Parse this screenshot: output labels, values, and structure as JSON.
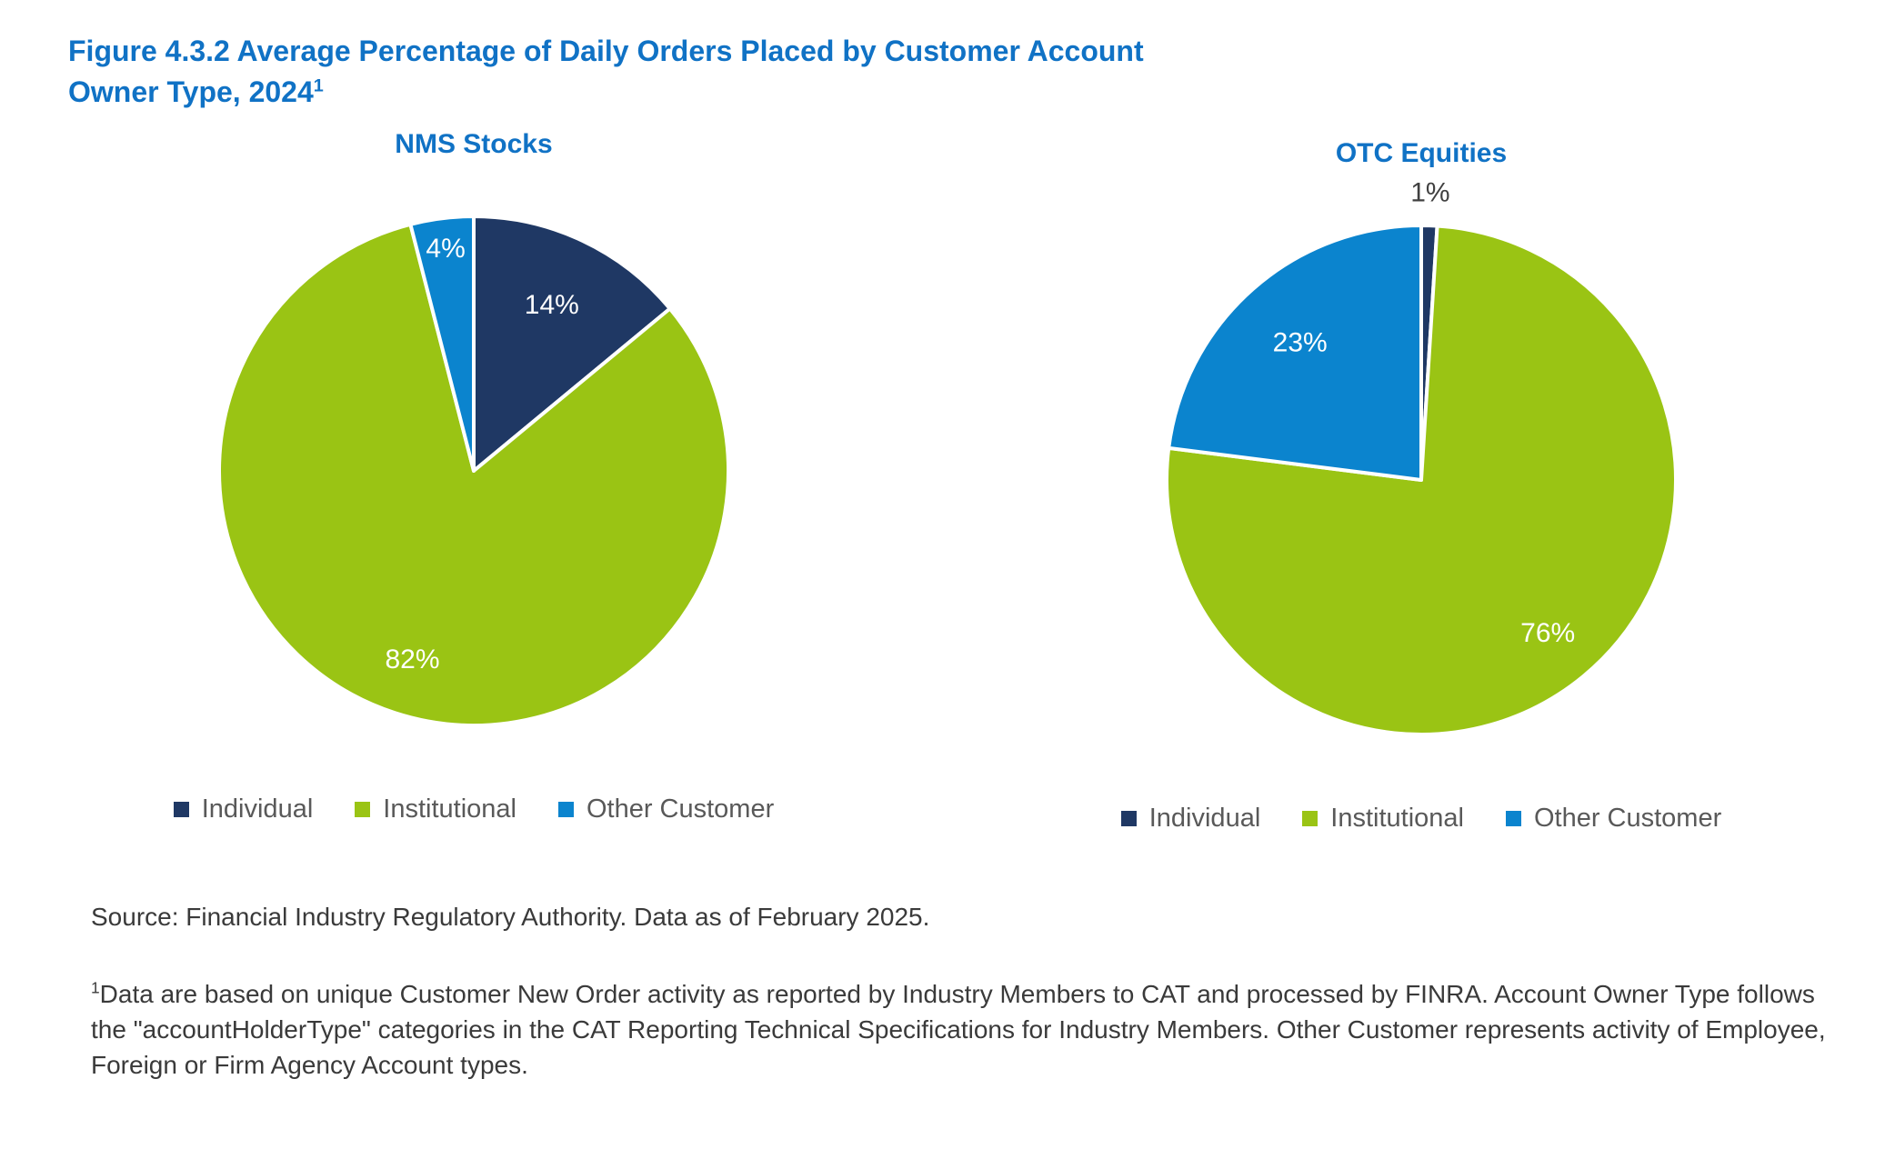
{
  "figure": {
    "title_line1": "Figure 4.3.2 Average Percentage of Daily Orders Placed by Customer Account",
    "title_line2": "Owner Type, 2024",
    "title_superscript": "1"
  },
  "colors": {
    "accent_blue": "#1072C5",
    "individual_navy": "#1F3864",
    "institutional_green": "#9AC414",
    "other_customer_blue": "#0B84CE",
    "legend_text_gray": "#595959",
    "body_text": "#3A3A3A",
    "outside_label_gray": "#404040",
    "inside_label_white": "#FFFFFF",
    "slice_separator": "#FFFFFF"
  },
  "chart_data": [
    {
      "type": "pie",
      "title": "NMS Stocks",
      "start_angle_deg": 0,
      "direction": "clockwise",
      "legend_position": "bottom",
      "slices": [
        {
          "label": "Individual",
          "value": 14,
          "pct_label": "14%",
          "color": "#1F3864",
          "label_color": "#FFFFFF",
          "label_dist": 0.72,
          "label_outside": false
        },
        {
          "label": "Institutional",
          "value": 82,
          "pct_label": "82%",
          "color": "#9AC414",
          "label_color": "#FFFFFF",
          "label_dist": 0.78,
          "label_outside": false
        },
        {
          "label": "Other Customer",
          "value": 4,
          "pct_label": "4%",
          "color": "#0B84CE",
          "label_color": "#FFFFFF",
          "label_dist": 0.88,
          "label_outside": false
        }
      ]
    },
    {
      "type": "pie",
      "title": "OTC Equities",
      "start_angle_deg": 0,
      "direction": "clockwise",
      "legend_position": "bottom",
      "slices": [
        {
          "label": "Individual",
          "value": 1,
          "pct_label": "1%",
          "color": "#1F3864",
          "label_color": "#404040",
          "label_dist": 1.13,
          "label_outside": true
        },
        {
          "label": "Institutional",
          "value": 76,
          "pct_label": "76%",
          "color": "#9AC414",
          "label_color": "#FFFFFF",
          "label_dist": 0.78,
          "label_outside": false
        },
        {
          "label": "Other Customer",
          "value": 23,
          "pct_label": "23%",
          "color": "#0B84CE",
          "label_color": "#FFFFFF",
          "label_dist": 0.72,
          "label_outside": false
        }
      ]
    }
  ],
  "source_note": "Source: Financial Industry Regulatory Authority. Data as of February 2025.",
  "footnote": {
    "superscript": "1",
    "text": "Data are based on unique Customer New Order activity as reported by Industry Members to CAT and processed by FINRA. Account Owner Type follows the \"accountHolderType\" categories in the CAT Reporting Technical Specifications for Industry Members. Other Customer represents activity of Employee, Foreign or Firm Agency Account types."
  }
}
